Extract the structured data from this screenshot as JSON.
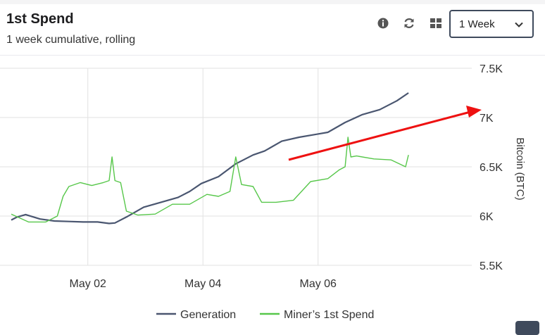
{
  "header": {
    "title": "1st Spend",
    "subtitle": "1 week cumulative, rolling",
    "range_selected": "1 Week"
  },
  "icons": {
    "info": "info-icon",
    "refresh": "refresh-icon",
    "grid": "grid-icon",
    "dropdown": "chevron-down-icon"
  },
  "colors": {
    "generation": "#4a5670",
    "miner_spend": "#57c74a",
    "annotation_arrow": "#ee1111",
    "select_border": "#3f4a5c",
    "grid": "#e2e2e2"
  },
  "chart_data": {
    "type": "line",
    "ylabel": "Bitcoin (BTC)",
    "ylim": [
      5500,
      7500
    ],
    "yticks": [
      "7.5K",
      "7K",
      "6.5K",
      "6K",
      "5.5K"
    ],
    "ytick_values": [
      7500,
      7000,
      6500,
      6000,
      5500
    ],
    "xlim": [
      0,
      8
    ],
    "xticks": [
      "May 02",
      "May 04",
      "May 06"
    ],
    "xtick_values": [
      1.33,
      3.33,
      5.33
    ],
    "grid": true,
    "legend_position": "bottom",
    "series": [
      {
        "name": "Generation",
        "x": [
          0,
          0.1,
          0.25,
          0.5,
          0.75,
          1.0,
          1.25,
          1.5,
          1.7,
          1.8,
          2.0,
          2.3,
          2.6,
          2.9,
          3.1,
          3.3,
          3.6,
          3.9,
          4.2,
          4.4,
          4.7,
          5.0,
          5.3,
          5.5,
          5.8,
          6.1,
          6.4,
          6.7,
          6.9
        ],
        "values": [
          5960,
          5990,
          6015,
          5970,
          5950,
          5945,
          5940,
          5940,
          5925,
          5930,
          5990,
          6090,
          6140,
          6190,
          6250,
          6330,
          6400,
          6530,
          6620,
          6660,
          6760,
          6800,
          6830,
          6850,
          6950,
          7030,
          7080,
          7170,
          7250
        ]
      },
      {
        "name": "Miner’s 1st Spend",
        "x": [
          0,
          0.3,
          0.6,
          0.8,
          0.9,
          1.0,
          1.2,
          1.4,
          1.6,
          1.7,
          1.75,
          1.8,
          1.9,
          2.0,
          2.2,
          2.5,
          2.8,
          3.1,
          3.4,
          3.6,
          3.8,
          3.9,
          4.0,
          4.2,
          4.35,
          4.6,
          4.9,
          5.2,
          5.5,
          5.7,
          5.8,
          5.85,
          5.9,
          6.0,
          6.3,
          6.6,
          6.85,
          6.9
        ],
        "values": [
          6020,
          5940,
          5940,
          6000,
          6200,
          6300,
          6340,
          6310,
          6340,
          6360,
          6600,
          6360,
          6340,
          6050,
          6010,
          6020,
          6120,
          6120,
          6220,
          6200,
          6250,
          6600,
          6320,
          6300,
          6140,
          6140,
          6160,
          6350,
          6380,
          6470,
          6500,
          6800,
          6600,
          6610,
          6580,
          6570,
          6500,
          6620
        ]
      }
    ]
  }
}
